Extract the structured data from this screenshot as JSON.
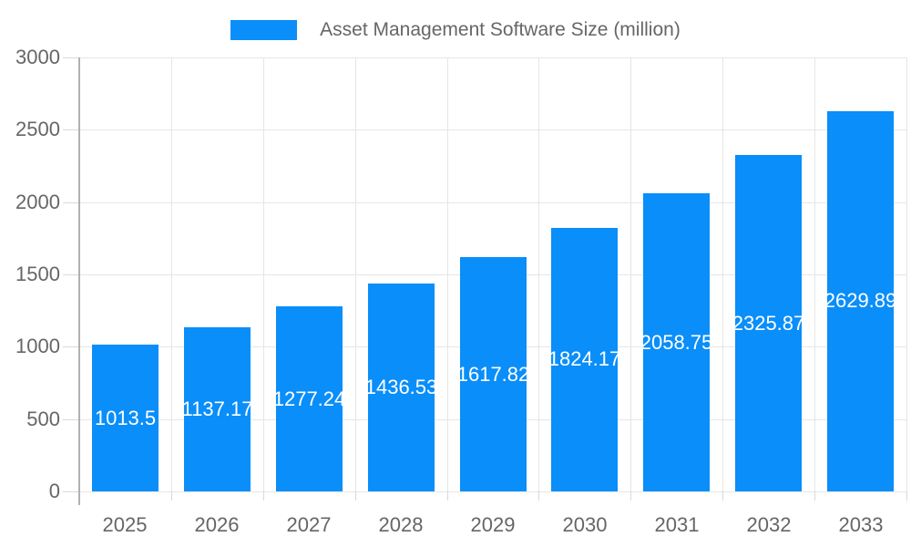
{
  "chart_data": {
    "type": "bar",
    "title": "Asset Management Software Size (million)",
    "categories": [
      "2025",
      "2026",
      "2027",
      "2028",
      "2029",
      "2030",
      "2031",
      "2032",
      "2033"
    ],
    "values": [
      1013.5,
      1137.17,
      1277.24,
      1436.53,
      1617.82,
      1824.17,
      2058.75,
      2325.87,
      2629.89
    ],
    "value_labels": [
      "1013.5",
      "1137.17",
      "1277.24",
      "1436.53",
      "1617.82",
      "1824.17",
      "2058.75",
      "2325.87",
      "2629.89"
    ],
    "ylim": [
      0,
      3000
    ],
    "yticks": [
      0,
      500,
      1000,
      1500,
      2000,
      2500,
      3000
    ],
    "ytick_labels": [
      "0",
      "500",
      "1000",
      "1500",
      "2000",
      "2500",
      "3000"
    ],
    "legend_position": "top",
    "grid": true
  },
  "colors": {
    "bar": "#0a8ef9",
    "grid": "#e6e6e6",
    "axis_line": "#b1b1b1",
    "tick": "#d9d9d9",
    "axis_text": "#666666",
    "legend_text": "#666666",
    "bar_label_text": "#ffffff"
  }
}
